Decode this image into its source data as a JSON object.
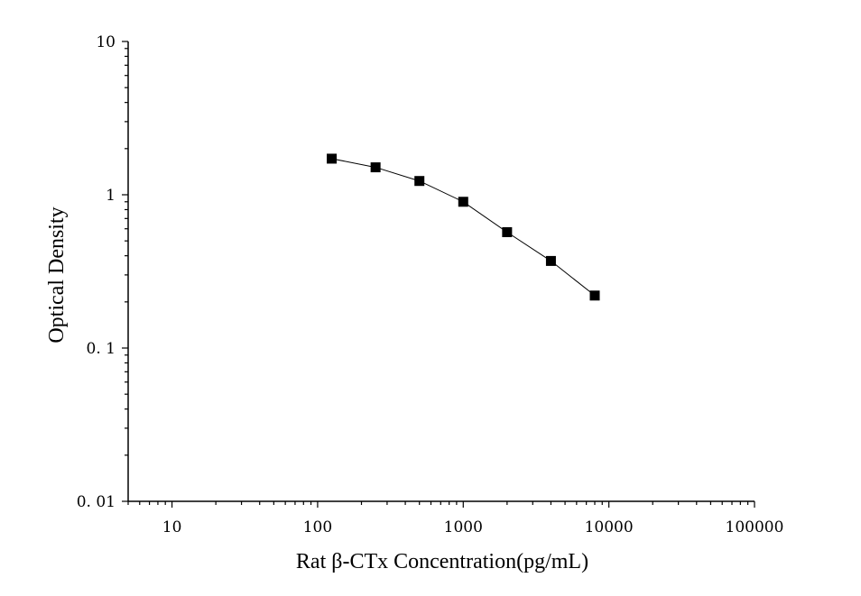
{
  "chart_data": {
    "type": "scatter",
    "xlabel": "Rat β-CTx Concentration(pg/mL)",
    "ylabel": "Optical Density",
    "x_scale": "log",
    "y_scale": "log",
    "xlim": [
      5,
      100000
    ],
    "ylim": [
      0.01,
      10
    ],
    "x_ticks": [
      {
        "value": 10,
        "label": "10"
      },
      {
        "value": 100,
        "label": "100"
      },
      {
        "value": 1000,
        "label": "1000"
      },
      {
        "value": 10000,
        "label": "10000"
      },
      {
        "value": 100000,
        "label": "100000"
      }
    ],
    "y_ticks": [
      {
        "value": 0.01,
        "label": "0. 01"
      },
      {
        "value": 0.1,
        "label": "0. 1"
      },
      {
        "value": 1,
        "label": "1"
      },
      {
        "value": 10,
        "label": "10"
      }
    ],
    "series": [
      {
        "x": [
          125,
          250,
          500,
          1000,
          2000,
          4000,
          8000
        ],
        "y": [
          1.72,
          1.51,
          1.23,
          0.9,
          0.57,
          0.37,
          0.22
        ]
      }
    ],
    "marker": "square",
    "line_connected": true,
    "grid": false,
    "colors": {
      "marker": "#000000",
      "line": "#000000",
      "axis": "#000000"
    }
  }
}
